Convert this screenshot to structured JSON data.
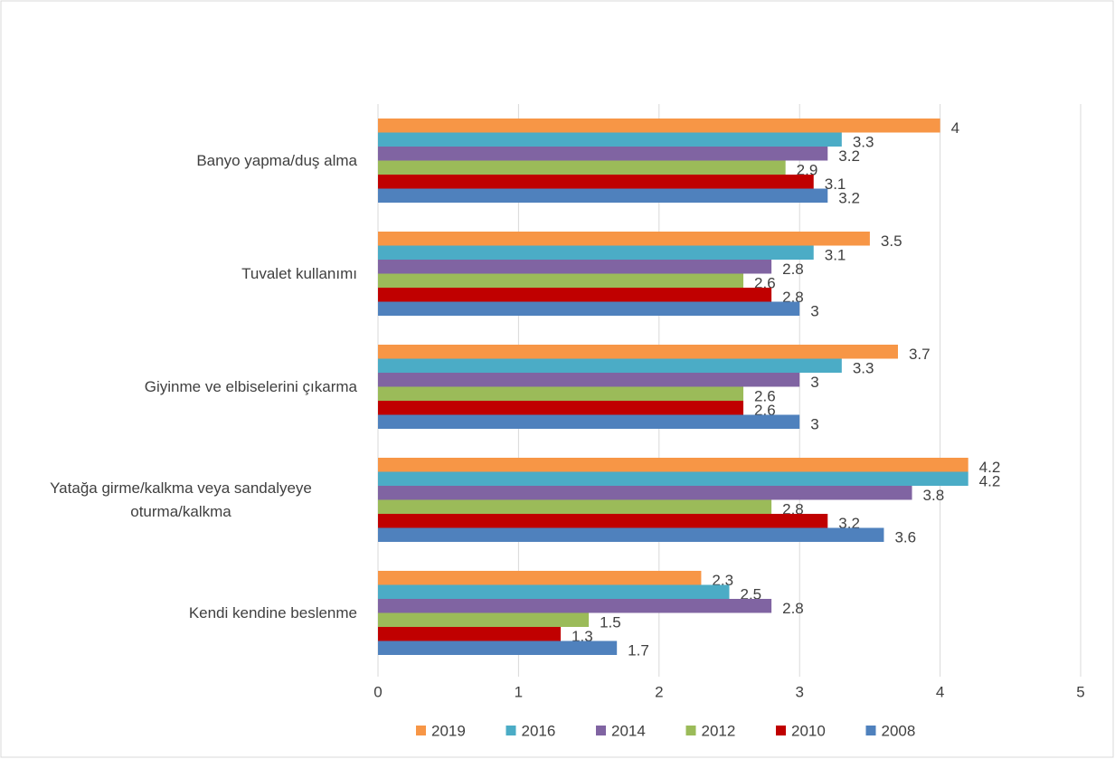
{
  "chart_data": {
    "type": "hbar",
    "categories": [
      "Banyo yapma/duş alma",
      "Tuvalet kullanımı",
      "Giyinme ve elbiselerini çıkarma",
      "Yatağa girme/kalkma veya sandalyeye oturma/kalkma",
      "Kendi kendine beslenme"
    ],
    "series": [
      {
        "name": "2019",
        "color": "#f79646",
        "values": [
          4,
          3.5,
          3.7,
          4.2,
          2.3
        ]
      },
      {
        "name": "2016",
        "color": "#4bacc6",
        "values": [
          3.3,
          3.1,
          3.3,
          4.2,
          2.5
        ]
      },
      {
        "name": "2014",
        "color": "#8064a2",
        "values": [
          3.2,
          2.8,
          3,
          3.8,
          2.8
        ]
      },
      {
        "name": "2012",
        "color": "#9bbb59",
        "values": [
          2.9,
          2.6,
          2.6,
          2.8,
          1.5
        ]
      },
      {
        "name": "2010",
        "color": "#c00000",
        "values": [
          3.1,
          2.8,
          2.6,
          3.2,
          1.3
        ]
      },
      {
        "name": "2008",
        "color": "#4f81bd",
        "values": [
          3.2,
          3,
          3,
          3.6,
          1.7
        ]
      }
    ],
    "xlim": [
      0,
      5
    ],
    "xticks": [
      0,
      1,
      2,
      3,
      4,
      5
    ],
    "grid": true,
    "legend": "bottom"
  }
}
